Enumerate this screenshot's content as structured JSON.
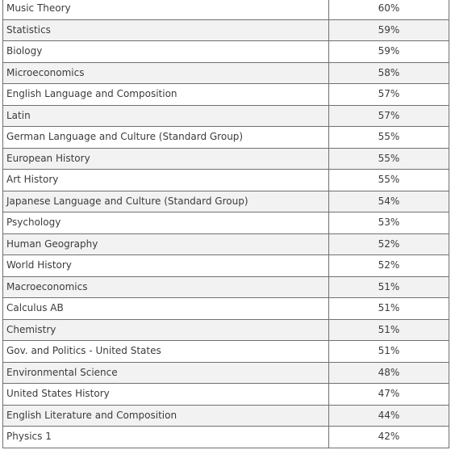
{
  "table": {
    "rows": [
      {
        "subject": "Music Theory",
        "score": "60%"
      },
      {
        "subject": "Statistics",
        "score": "59%"
      },
      {
        "subject": "Biology",
        "score": "59%"
      },
      {
        "subject": "Microeconomics",
        "score": "58%"
      },
      {
        "subject": "English Language and Composition",
        "score": "57%"
      },
      {
        "subject": "Latin",
        "score": "57%"
      },
      {
        "subject": "German Language and Culture (Standard Group)",
        "score": "55%"
      },
      {
        "subject": "European History",
        "score": "55%"
      },
      {
        "subject": "Art History",
        "score": "55%"
      },
      {
        "subject": "Japanese Language and Culture (Standard Group)",
        "score": "54%"
      },
      {
        "subject": "Psychology",
        "score": "53%"
      },
      {
        "subject": "Human Geography",
        "score": "52%"
      },
      {
        "subject": "World History",
        "score": "52%"
      },
      {
        "subject": "Macroeconomics",
        "score": "51%"
      },
      {
        "subject": "Calculus AB",
        "score": "51%"
      },
      {
        "subject": "Chemistry",
        "score": "51%"
      },
      {
        "subject": "Gov. and Politics - United States",
        "score": "51%"
      },
      {
        "subject": "Environmental Science",
        "score": "48%"
      },
      {
        "subject": "United States History",
        "score": "47%"
      },
      {
        "subject": "English Literature and Composition",
        "score": "44%"
      },
      {
        "subject": "Physics 1",
        "score": "42%"
      }
    ]
  }
}
